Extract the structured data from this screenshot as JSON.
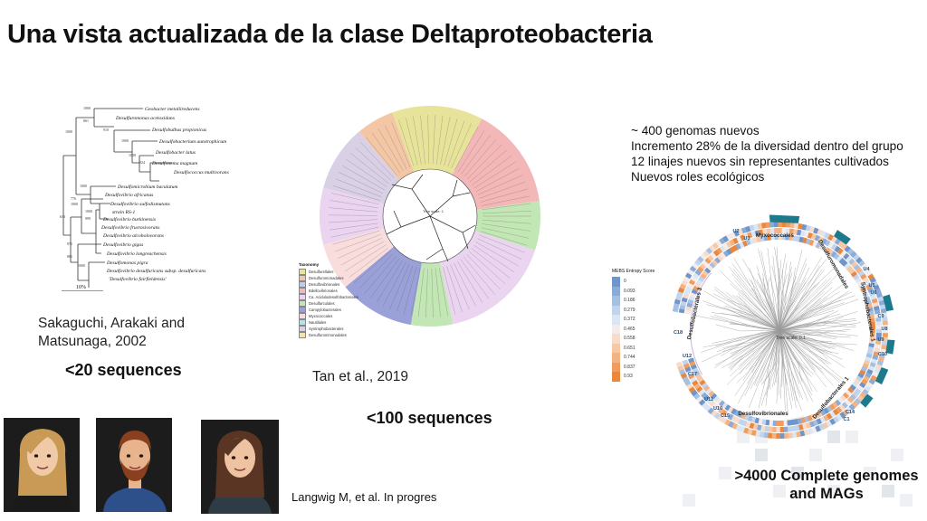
{
  "title": "Una vista actualizada de la clase Deltaproteobacteria",
  "panel1": {
    "taxa": [
      "Geobacter metallireducens",
      "Desulfuromonas acetoxidans",
      "Desulfobulbus propionicus",
      "Desulfobacterium autotrophicum",
      "Desulfobacter latus",
      "Desulfonema magnum",
      "Desulfococcus multivorans",
      "Desulfomicrobium baculatum",
      "Desulfovibrio africanus",
      "Desulfovibrio sulfodismutans",
      "strain RS-1",
      "Desulfovibrio burkinensis",
      "Desulfovibrio fructosivorans",
      "Desulfovibrio alcoholovorans",
      "Desulfovibrio gigas",
      "Desulfovibrio longreachensis",
      "Desulfomonas pigra",
      "Desulfovibrio desulfuricans subsp. desulfuricans",
      "'Desulfovibrio fairfieldensis'"
    ],
    "bootstrap": [
      "1000",
      "1000",
      "861",
      "910",
      "1000",
      "1000",
      "924",
      "1000",
      "776",
      "1000",
      "1000",
      "999",
      "633",
      "971",
      "881",
      "1000"
    ],
    "scale": "10%",
    "citation": "Sakaguchi, Arakaki and Matsunaga, 2002",
    "count": "<20 sequences"
  },
  "panel2": {
    "legend_title": "Taxonomy",
    "legend": [
      {
        "label": "Desulfurellales",
        "color": "#e8e39a"
      },
      {
        "label": "Desulfuromonadales",
        "color": "#f3c7a5"
      },
      {
        "label": "Desulfovibrionales",
        "color": "#c5cbe6"
      },
      {
        "label": "Bdellovibrionales",
        "color": "#f3b7b7"
      },
      {
        "label": "Ca. Acidulodesulfobacteriales",
        "color": "#ead4f0"
      },
      {
        "label": "Desulfarculales",
        "color": "#c2e6b4"
      },
      {
        "label": "Campylobacterales",
        "color": "#9aa0d8"
      },
      {
        "label": "Myxococcales",
        "color": "#f9dcdc"
      },
      {
        "label": "Nautiliales",
        "color": "#b9e1ea"
      },
      {
        "label": "Syntrophobacterales",
        "color": "#d9d0e6"
      },
      {
        "label": "Desulfurommonadales",
        "color": "#f4e3ac"
      }
    ],
    "scale_label": "Tree scale: 1",
    "citation": "Tan et al., 2019",
    "count": "<100 sequences"
  },
  "panel3": {
    "notes": [
      "~ 400 genomas nuevos",
      "Incremento 28% de la diversidad dentro del grupo",
      "12 linajes nuevos sin representantes cultivados",
      "Nuevos roles ecológicos"
    ],
    "legend_title": "MEBS Entropy Score",
    "scale_values": [
      "0",
      "0.093",
      "0.186",
      "0.279",
      "0.372",
      "0.465",
      "0.558",
      "0.651",
      "0.744",
      "0.837",
      "0.93"
    ],
    "scale_colors": [
      "#6f95c9",
      "#8aabd6",
      "#a6c0e2",
      "#c1d4ec",
      "#dbe6f4",
      "#f4ecea",
      "#f8dccb",
      "#f6c8a6",
      "#f3b383",
      "#ef9c5e",
      "#eb873d"
    ],
    "tree_scale": "Tree scale: 0.1",
    "clade_labels": [
      "Myxococcales",
      "Desulfuromonadales",
      "Syntrophobacterales 1",
      "Desulfobacterales 3",
      "Desulfovibrionales",
      "Desulfobacterales 1"
    ],
    "lineage_labels": [
      "U3",
      "U2",
      "U4",
      "U5",
      "U6",
      "C9",
      "U8",
      "U9",
      "C10",
      "C18",
      "U12",
      "C17",
      "U11",
      "U10",
      "C15",
      "C14",
      "C1"
    ],
    "footer": ">4000 Complete genomes and MAGs"
  },
  "citation_footer": "Langwig M, et al. In progres",
  "avatars": [
    {
      "label": "avatar-woman-blonde",
      "hair": "#c99a55",
      "shirt": "#1a1a1a",
      "skin": "#f0c9a6"
    },
    {
      "label": "avatar-man-beard",
      "hair": "#8a3f1e",
      "shirt": "#2d4f8a",
      "skin": "#e8b48e"
    },
    {
      "label": "avatar-woman-brunette",
      "hair": "#5b3524",
      "shirt": "#2e3c46",
      "skin": "#edc3a2"
    }
  ]
}
